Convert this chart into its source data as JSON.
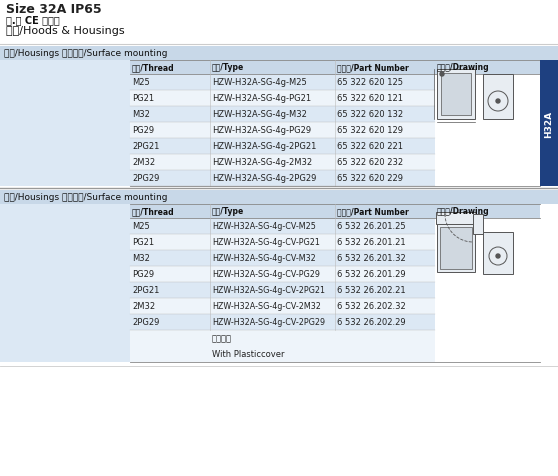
{
  "title_line1": "Size 32A IP65",
  "title_line3": "外壳/Hoods & Housings",
  "section1_header": "下壳/Housings 表面安裃/Surface mounting",
  "section2_header": "下壳/Housings 表面安裃/Surface mounting",
  "col_headers": [
    "螺纹/Thread",
    "型号/Type",
    "订货号/Part Number",
    "尺寸图/Drawing"
  ],
  "table1_rows": [
    [
      "M25",
      "HZW-H32A-SG-4g-M25",
      "65 322 620 125"
    ],
    [
      "PG21",
      "HZW-H32A-SG-4g-PG21",
      "65 322 620 121"
    ],
    [
      "M32",
      "HZW-H32A-SG-4g-M32",
      "65 322 620 132"
    ],
    [
      "PG29",
      "HZW-H32A-SG-4g-PG29",
      "65 322 620 129"
    ],
    [
      "2PG21",
      "HZW-H32A-SG-4g-2PG21",
      "65 322 620 221"
    ],
    [
      "2M32",
      "HZW-H32A-SG-4g-2M32",
      "65 322 620 232"
    ],
    [
      "2PG29",
      "HZW-H32A-SG-4g-2PG29",
      "65 322 620 229"
    ]
  ],
  "table2_rows": [
    [
      "M25",
      "HZW-H32A-SG-4g-CV-M25",
      "6 532 26.201.25"
    ],
    [
      "PG21",
      "HZW-H32A-SG-4g-CV-PG21",
      "6 532 26.201.21"
    ],
    [
      "M32",
      "HZW-H32A-SG-4g-CV-M32",
      "6 532 26.201.32"
    ],
    [
      "PG29",
      "HZW-H32A-SG-4g-CV-PG29",
      "6 532 26.201.29"
    ],
    [
      "2PG21",
      "HZW-H32A-SG-4g-CV-2PG21",
      "6 532 26.202.21"
    ],
    [
      "2M32",
      "HZW-H32A-SG-4g-CV-2M32",
      "6 532 26.202.32"
    ],
    [
      "2PG29",
      "HZW-H32A-SG-4g-CV-2PG29",
      "6 532 26.202.29"
    ]
  ],
  "table2_note_line1": "带塑料盖",
  "table2_note_line2": "With Plasticcover",
  "bg_color": "#ffffff",
  "header_bg": "#c8d8e8",
  "row_alt_bg": "#dce8f4",
  "row_bg": "#eef4fa",
  "section_header_bg": "#c8d8e8",
  "table_area_bg": "#dce8f4",
  "h32a_label": "H32A",
  "h32a_bg": "#1e4080",
  "line_color": "#aaaaaa",
  "border_color": "#888888"
}
